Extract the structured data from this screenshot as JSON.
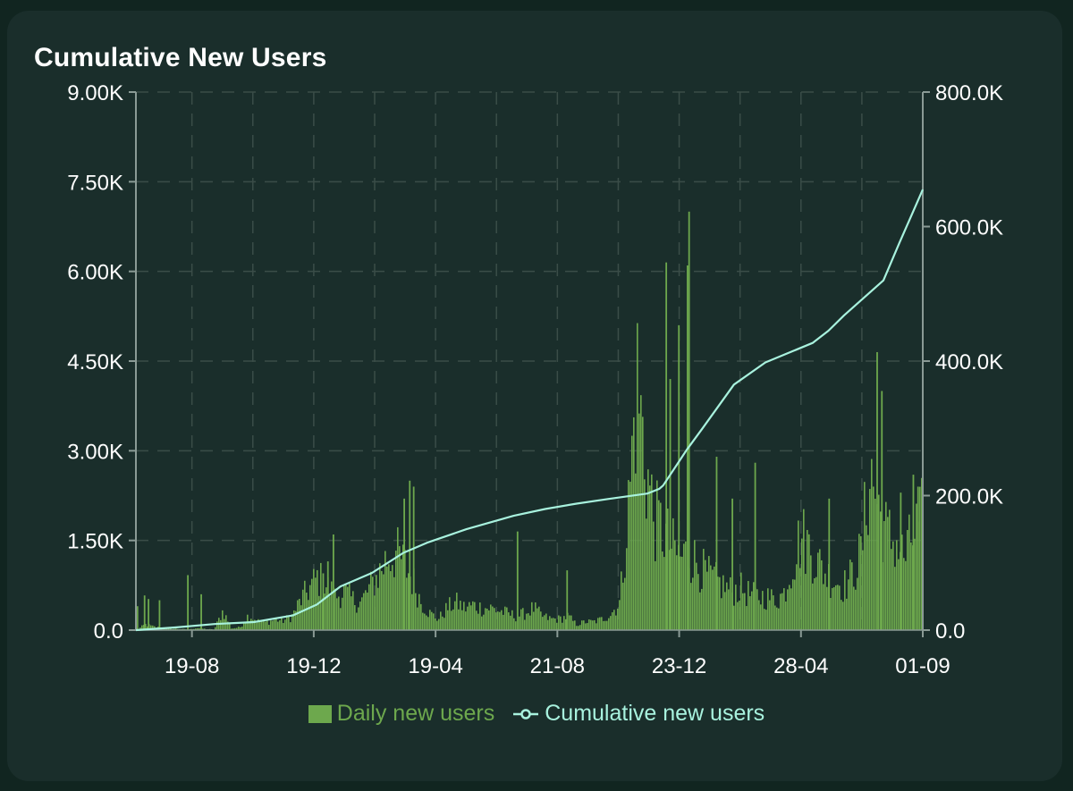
{
  "chart_data": {
    "title": "Cumulative New Users",
    "type": "bar+line",
    "left_axis": {
      "ticks": [
        "0.0",
        "1.50K",
        "3.00K",
        "4.50K",
        "6.00K",
        "7.50K",
        "9.00K"
      ],
      "min": 0,
      "max": 9000
    },
    "right_axis": {
      "ticks": [
        "0.0",
        "200.0K",
        "400.0K",
        "600.0K",
        "800.0K"
      ],
      "min": 0,
      "max": 800000
    },
    "x_ticks": [
      "19-08",
      "19-12",
      "19-04",
      "21-08",
      "23-12",
      "28-04",
      "01-09"
    ],
    "grid": true,
    "legend": {
      "placement": "bottom"
    },
    "colors": {
      "bars": "#6da84d",
      "line": "#a8f2de",
      "grid": "#3a4d48",
      "axis": "#8a9a95"
    },
    "series": [
      {
        "name": "Daily new users",
        "type": "bar",
        "axis": "left",
        "x_range": [
          0,
          1000
        ],
        "values": [
          0,
          100,
          60,
          40,
          30,
          20,
          10,
          40,
          20,
          10,
          350,
          30,
          50,
          280,
          160,
          140,
          190,
          170,
          250,
          530,
          750,
          950,
          800,
          600,
          700,
          550,
          500,
          750,
          1000,
          1300,
          1400,
          1200,
          900,
          500,
          300,
          200,
          400,
          500,
          400,
          450,
          400,
          400,
          350,
          300,
          250,
          300,
          400,
          250,
          200,
          200,
          250,
          100,
          150,
          150,
          200,
          300,
          500,
          2200,
          4500,
          3000,
          2000,
          1800,
          1500,
          1300,
          1400,
          1200,
          1000,
          900,
          800,
          700,
          750,
          650,
          600,
          600,
          550,
          650,
          1200,
          1700,
          1500,
          1200,
          1000,
          900,
          800,
          1000,
          1400,
          2900,
          2200,
          1700,
          1600,
          1300,
          1700,
          2000
        ],
        "spikes": [
          {
            "x": 1,
            "y": 400
          },
          {
            "x": 10,
            "y": 580
          },
          {
            "x": 15,
            "y": 520
          },
          {
            "x": 29,
            "y": 500
          },
          {
            "x": 65,
            "y": 920
          },
          {
            "x": 82,
            "y": 600
          },
          {
            "x": 250,
            "y": 1600
          },
          {
            "x": 237,
            "y": 950
          },
          {
            "x": 243,
            "y": 1150
          },
          {
            "x": 347,
            "y": 2500
          },
          {
            "x": 340,
            "y": 2200
          },
          {
            "x": 352,
            "y": 2400
          },
          {
            "x": 484,
            "y": 1650
          },
          {
            "x": 547,
            "y": 1000
          },
          {
            "x": 673,
            "y": 6150
          },
          {
            "x": 678,
            "y": 4200
          },
          {
            "x": 689,
            "y": 5100
          },
          {
            "x": 700,
            "y": 6100
          },
          {
            "x": 702,
            "y": 7000
          },
          {
            "x": 737,
            "y": 2900
          },
          {
            "x": 786,
            "y": 2800
          },
          {
            "x": 757,
            "y": 2200
          },
          {
            "x": 941,
            "y": 4650
          },
          {
            "x": 947,
            "y": 4000
          },
          {
            "x": 971,
            "y": 2300
          },
          {
            "x": 987,
            "y": 2600
          },
          {
            "x": 993,
            "y": 2400
          },
          {
            "x": 880,
            "y": 2200
          }
        ]
      },
      {
        "name": "Cumulative new users",
        "type": "line",
        "axis": "right",
        "x": [
          0,
          50,
          100,
          150,
          200,
          230,
          260,
          300,
          340,
          370,
          420,
          480,
          520,
          560,
          600,
          650,
          665,
          670,
          700,
          720,
          760,
          800,
          860,
          880,
          900,
          950,
          970,
          1000
        ],
        "y": [
          0,
          4000,
          9000,
          12000,
          22000,
          38000,
          65000,
          85000,
          115000,
          130000,
          150000,
          170000,
          180000,
          188000,
          195000,
          203000,
          210000,
          215000,
          268000,
          300000,
          365000,
          398000,
          427000,
          445000,
          468000,
          520000,
          575000,
          655000
        ]
      }
    ]
  },
  "legend_items": [
    {
      "label": "Daily new users"
    },
    {
      "label": "Cumulative new users"
    }
  ]
}
